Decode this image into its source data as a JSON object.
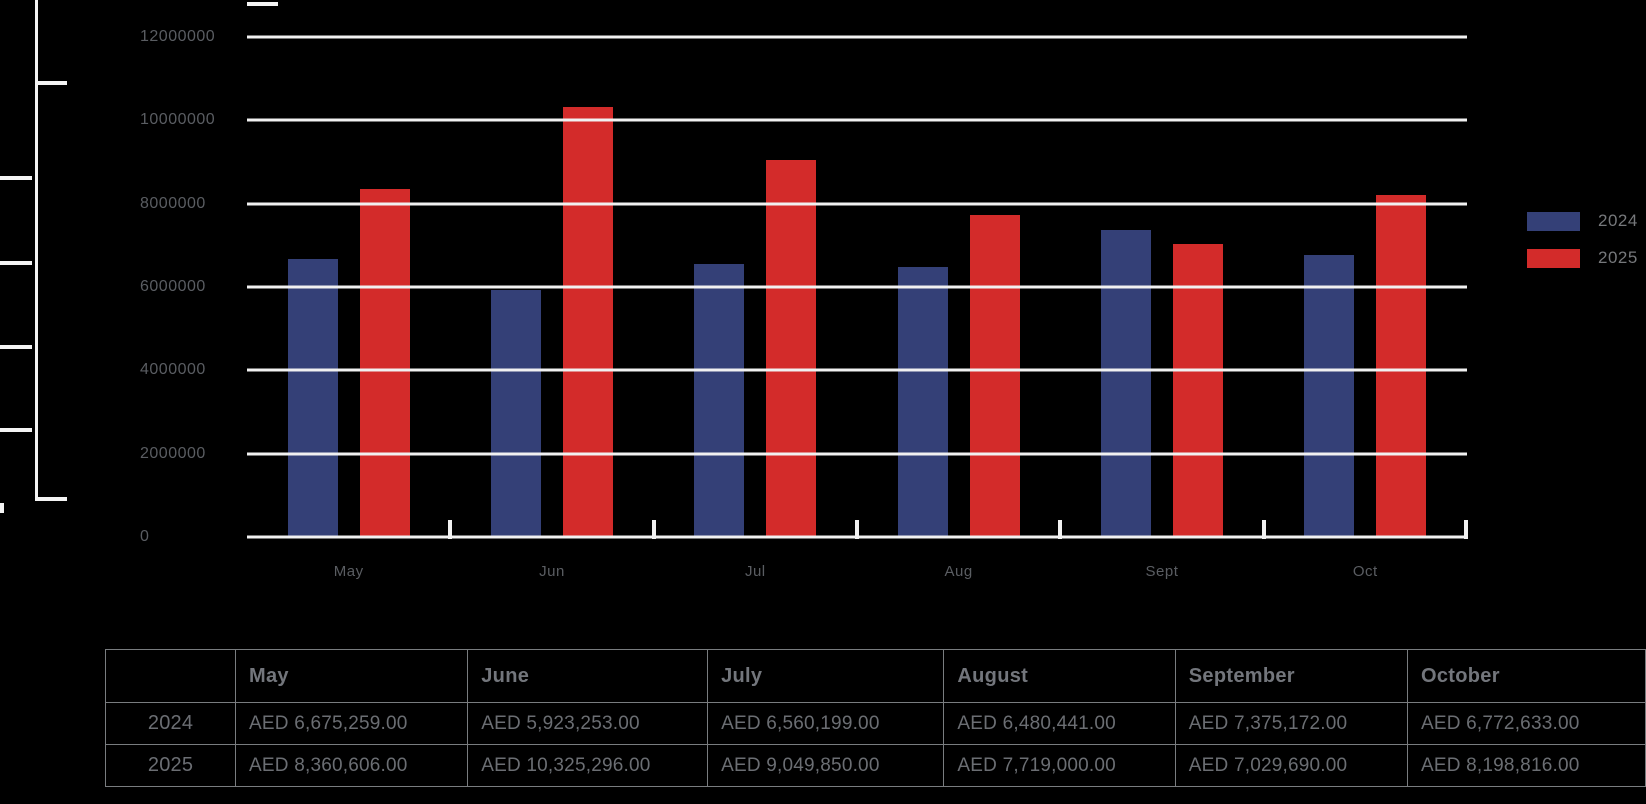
{
  "colors": {
    "background": "#000000",
    "gridline": "#F1F1F1",
    "axis_text": "#5A5D62",
    "legend_text": "#76787B",
    "table_text": "#6B6E73",
    "table_border": "#797C7F",
    "bar_2024": "#344077",
    "bar_2025": "#D32B2A"
  },
  "chart_data": {
    "type": "bar",
    "title": "",
    "xlabel": "",
    "ylabel": "",
    "categories": [
      "May",
      "Jun",
      "Jul",
      "Aug",
      "Sept",
      "Oct"
    ],
    "series": [
      {
        "name": "2024",
        "color": "#344077",
        "values": [
          6675259,
          5923253,
          6560199,
          6480441,
          7375172,
          6772633
        ]
      },
      {
        "name": "2025",
        "color": "#D32B2A",
        "values": [
          8360606,
          10325296,
          9049850,
          7719000,
          7029690,
          8198816
        ]
      }
    ],
    "ylim": [
      0,
      12000000
    ],
    "ytick_interval": 2000000,
    "ytick_labels": [
      "12000000",
      "10000000",
      "8000000",
      "6000000",
      "4000000",
      "2000000",
      "0"
    ],
    "grid": "horizontal",
    "legend_position": "right"
  },
  "legend": {
    "items": [
      {
        "label": "2024",
        "color": "#344077"
      },
      {
        "label": "2025",
        "color": "#D32B2A"
      }
    ]
  },
  "table": {
    "headers": [
      "",
      "May",
      "June",
      "July",
      "August",
      "September",
      "October"
    ],
    "rows": [
      {
        "label": "2024",
        "cells": [
          "AED 6,675,259.00",
          "AED 5,923,253.00",
          "AED 6,560,199.00",
          "AED 6,480,441.00",
          "AED 7,375,172.00",
          "AED 6,772,633.00"
        ]
      },
      {
        "label": "2025",
        "cells": [
          "AED 8,360,606.00",
          "AED 10,325,296.00",
          "AED 9,049,850.00",
          "AED 7,719,000.00",
          "AED 7,029,690.00",
          "AED 8,198,816.00"
        ]
      }
    ]
  }
}
